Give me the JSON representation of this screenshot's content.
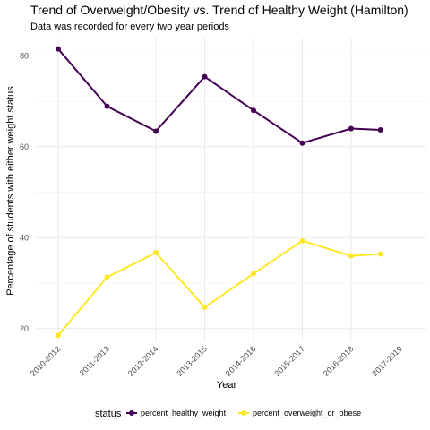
{
  "chart_data": {
    "type": "line",
    "title": "Trend of Overweight/Obesity vs. Trend of Healthy Weight (Hamilton)",
    "subtitle": "Data was recorded for every two year periods",
    "xlabel": "Year",
    "ylabel": "Percentage of students with either weight status",
    "categories": [
      "2010-2012",
      "2011-2013",
      "2012-2014",
      "2013-2015",
      "2014-2016",
      "2015-2017",
      "2016-2018",
      "2017-2019"
    ],
    "yticks": [
      20,
      40,
      60,
      80
    ],
    "ylim": [
      17,
      84
    ],
    "grid": true,
    "legend_position": "bottom",
    "legend_title": "status",
    "series": [
      {
        "name": "percent_healthy_weight",
        "color": "#440154",
        "x": [
          0,
          1,
          2,
          3,
          4,
          5,
          6,
          6.6
        ],
        "values": [
          81.5,
          68.9,
          63.4,
          75.4,
          68.0,
          60.8,
          64.0,
          63.7
        ]
      },
      {
        "name": "percent_overweight_or_obese",
        "color": "#FDE725",
        "x": [
          0,
          1,
          2,
          3,
          4,
          5,
          6,
          6.6
        ],
        "values": [
          18.5,
          31.3,
          36.7,
          24.7,
          32.1,
          39.3,
          36.0,
          36.4
        ]
      }
    ]
  }
}
